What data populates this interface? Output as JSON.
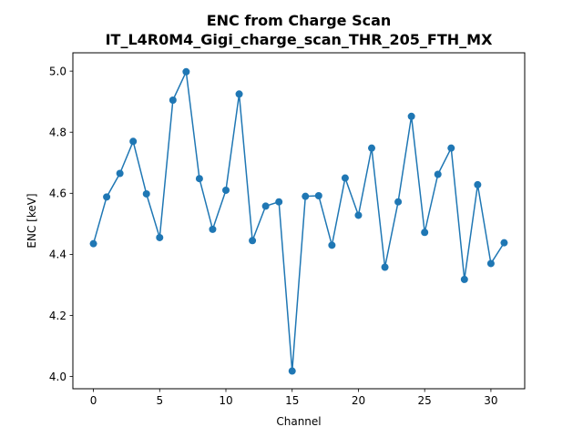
{
  "chart_data": {
    "type": "line",
    "title_line1": "ENC from Charge Scan",
    "title_line2": "IT_L4R0M4_Gigi_charge_scan_THR_205_FTH_MX",
    "xlabel": "Channel",
    "ylabel": "ENC [keV]",
    "xlim": [
      -1.55,
      32.55
    ],
    "ylim": [
      3.96,
      5.06
    ],
    "xticks": [
      0,
      5,
      10,
      15,
      20,
      25,
      30
    ],
    "yticks": [
      4.0,
      4.2,
      4.4,
      4.6,
      4.8,
      5.0
    ],
    "ytick_labels": [
      "4.0",
      "4.2",
      "4.4",
      "4.6",
      "4.8",
      "5.0"
    ],
    "grid": false,
    "color": "#1f77b4",
    "marker": "circle",
    "x": [
      0,
      1,
      2,
      3,
      4,
      5,
      6,
      7,
      8,
      9,
      10,
      11,
      12,
      13,
      14,
      15,
      16,
      17,
      18,
      19,
      20,
      21,
      22,
      23,
      24,
      25,
      26,
      27,
      28,
      29,
      30,
      31
    ],
    "y": [
      4.435,
      4.588,
      4.665,
      4.77,
      4.598,
      4.455,
      4.905,
      4.998,
      4.648,
      4.482,
      4.61,
      4.925,
      4.445,
      4.558,
      4.572,
      4.018,
      4.59,
      4.592,
      4.43,
      4.65,
      4.528,
      4.748,
      4.358,
      4.572,
      4.852,
      4.472,
      4.662,
      4.748,
      4.318,
      4.628,
      4.37,
      4.438
    ]
  }
}
